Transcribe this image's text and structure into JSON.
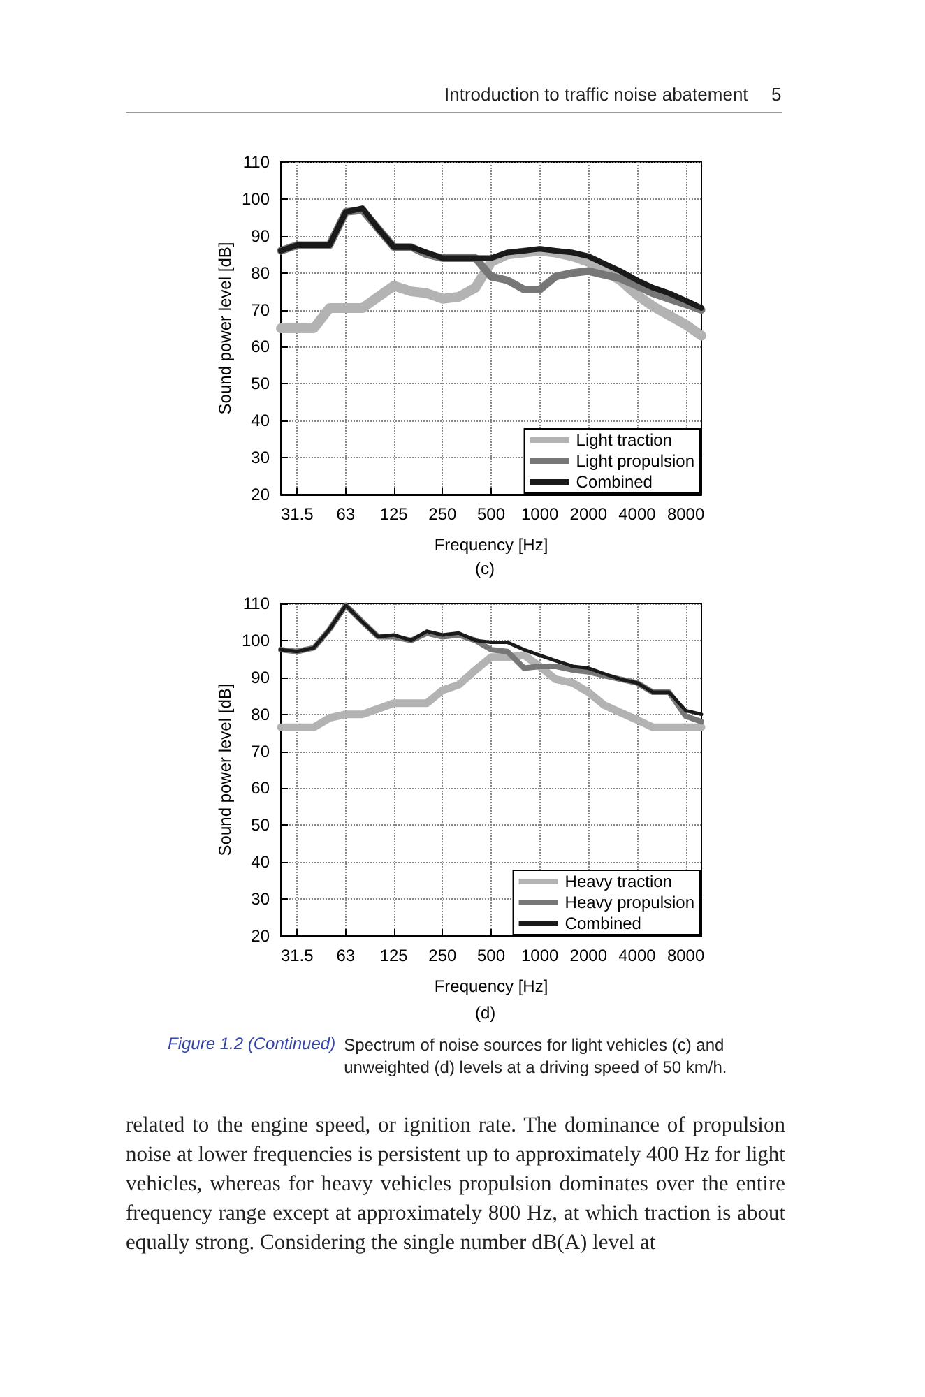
{
  "chart_data": [
    {
      "type": "line",
      "xlabel": "Frequency [Hz]",
      "ylabel": "Sound power level [dB]",
      "annotations": [
        "Introduction to traffic noise abatement",
        "5",
        "(c)"
      ],
      "x": [
        25,
        31.5,
        40,
        50,
        63,
        80,
        100,
        125,
        160,
        200,
        250,
        315,
        400,
        500,
        630,
        800,
        1000,
        1250,
        1600,
        2000,
        2500,
        3150,
        4000,
        5000,
        6300,
        8000,
        10000
      ],
      "series": [
        {
          "name": "Light traction",
          "color": "#b3b3b3",
          "values": [
            65,
            65,
            65,
            70.5,
            70.5,
            70.5,
            73.5,
            76.5,
            75,
            74.5,
            73,
            73.5,
            76,
            83,
            85,
            85.5,
            86,
            85.5,
            84.5,
            83,
            80.5,
            78,
            74,
            71,
            68.5,
            66,
            63
          ]
        },
        {
          "name": "Light propulsion",
          "color": "#777777",
          "values": [
            86,
            87.5,
            87.5,
            87.5,
            96.5,
            97,
            92,
            87,
            87,
            85,
            84,
            84,
            84,
            79,
            78,
            75.5,
            75.5,
            79,
            80,
            80.5,
            79.5,
            78.5,
            76.5,
            74.5,
            73,
            71.5,
            70
          ]
        },
        {
          "name": "Combined",
          "color": "#1a1a1a",
          "values": [
            86,
            87.5,
            87.5,
            87.5,
            96.5,
            97.5,
            92,
            87,
            87,
            85.5,
            84,
            84,
            84,
            84,
            85.5,
            86,
            86.5,
            86,
            85.5,
            84.5,
            82.5,
            80.5,
            78,
            76,
            74.5,
            72.5,
            70.5
          ]
        }
      ],
      "log": "x",
      "xlim": [
        25,
        10000
      ],
      "xticks": [
        31.5,
        63,
        125,
        250,
        500,
        1000,
        2000,
        4000,
        8000
      ],
      "ylim": [
        20,
        110
      ],
      "yticks": [
        20,
        30,
        40,
        50,
        60,
        70,
        80,
        90,
        100,
        110
      ],
      "grid": true,
      "legend": "bottom right",
      "marker": "none",
      "line_style": "solid"
    },
    {
      "type": "line",
      "xlabel": "Frequency [Hz]",
      "ylabel": "Sound power level [dB]",
      "annotations": [
        "(d)",
        "Figure 1.2 (Continued)",
        "Spectrum of noise sources for light vehicles (c) and unweighted (d) levels at a driving speed of 50 km/h.",
        "related to the engine speed, or ignition rate. The dominance of propulsion noise at lower frequencies is persistent up to approximately 400 Hz for light vehicles, whereas for heavy vehicles propulsion dominates over the entire frequency range except at approximately 800 Hz, at which traction is about equally strong. Considering the single number dB(A) level at"
      ],
      "x": [
        25,
        31.5,
        40,
        50,
        63,
        80,
        100,
        125,
        160,
        200,
        250,
        315,
        400,
        500,
        630,
        800,
        1000,
        1250,
        1600,
        2000,
        2500,
        3150,
        4000,
        5000,
        6300,
        8000,
        10000
      ],
      "series": [
        {
          "name": "Heavy traction",
          "color": "#b3b3b3",
          "values": [
            76.5,
            76.5,
            76.5,
            79,
            80,
            80,
            81.5,
            83,
            83,
            83,
            86.5,
            88,
            92,
            95.5,
            95.5,
            96,
            93,
            89.5,
            88.5,
            86,
            82.5,
            80.5,
            78.5,
            76.5,
            76.5,
            76.5,
            76.5
          ]
        },
        {
          "name": "Heavy propulsion",
          "color": "#777777",
          "values": [
            97.5,
            97,
            98,
            103,
            109.5,
            105,
            101,
            101,
            100,
            102,
            101,
            101.5,
            100,
            97.5,
            97,
            92.5,
            93,
            93,
            92,
            91.5,
            90.5,
            89.5,
            88.5,
            86,
            86,
            79.5,
            78
          ]
        },
        {
          "name": "Combined",
          "color": "#1a1a1a",
          "values": [
            97.5,
            97,
            98,
            103,
            109.5,
            105,
            101,
            101.5,
            100,
            102.5,
            101.5,
            102,
            100,
            99.5,
            99.5,
            97.5,
            96,
            94.5,
            93,
            92.5,
            91,
            89.5,
            88.5,
            86,
            86,
            81,
            80
          ]
        }
      ],
      "log": "x",
      "xlim": [
        25,
        10000
      ],
      "xticks": [
        31.5,
        63,
        125,
        250,
        500,
        1000,
        2000,
        4000,
        8000
      ],
      "ylim": [
        20,
        110
      ],
      "yticks": [
        20,
        30,
        40,
        50,
        60,
        70,
        80,
        90,
        100,
        110
      ],
      "grid": true,
      "legend": "bottom right",
      "marker": "none",
      "line_style": "solid"
    }
  ]
}
